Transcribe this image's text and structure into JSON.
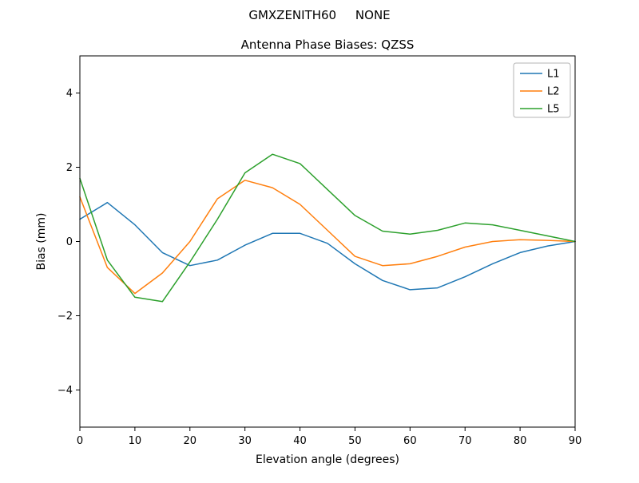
{
  "suptitle": "GMXZENITH60     NONE",
  "chart_data": {
    "type": "line",
    "title": "Antenna Phase Biases: QZSS",
    "xlabel": "Elevation angle (degrees)",
    "ylabel": "Bias (mm)",
    "xlim": [
      0,
      90
    ],
    "ylim": [
      -5,
      5
    ],
    "xticks": [
      0,
      10,
      20,
      30,
      40,
      50,
      60,
      70,
      80,
      90
    ],
    "yticks": [
      -4,
      -2,
      0,
      2,
      4
    ],
    "grid": false,
    "legend_position": "upper right",
    "x": [
      0,
      5,
      10,
      15,
      20,
      25,
      30,
      35,
      40,
      45,
      50,
      55,
      60,
      65,
      70,
      75,
      80,
      85,
      90
    ],
    "series": [
      {
        "name": "L1",
        "color": "#1f77b4",
        "values": [
          0.6,
          1.05,
          0.45,
          -0.3,
          -0.65,
          -0.5,
          -0.1,
          0.22,
          0.22,
          -0.05,
          -0.6,
          -1.05,
          -1.3,
          -1.25,
          -0.95,
          -0.6,
          -0.3,
          -0.12,
          0.0
        ]
      },
      {
        "name": "L2",
        "color": "#ff7f0e",
        "values": [
          1.2,
          -0.7,
          -1.4,
          -0.85,
          0.0,
          1.15,
          1.65,
          1.45,
          1.0,
          0.3,
          -0.4,
          -0.65,
          -0.6,
          -0.4,
          -0.15,
          0.0,
          0.05,
          0.03,
          0.0
        ]
      },
      {
        "name": "L5",
        "color": "#2ca02c",
        "values": [
          1.7,
          -0.5,
          -1.5,
          -1.62,
          -0.55,
          0.6,
          1.85,
          2.35,
          2.1,
          1.4,
          0.7,
          0.28,
          0.2,
          0.3,
          0.5,
          0.45,
          0.3,
          0.15,
          0.0
        ]
      }
    ]
  }
}
